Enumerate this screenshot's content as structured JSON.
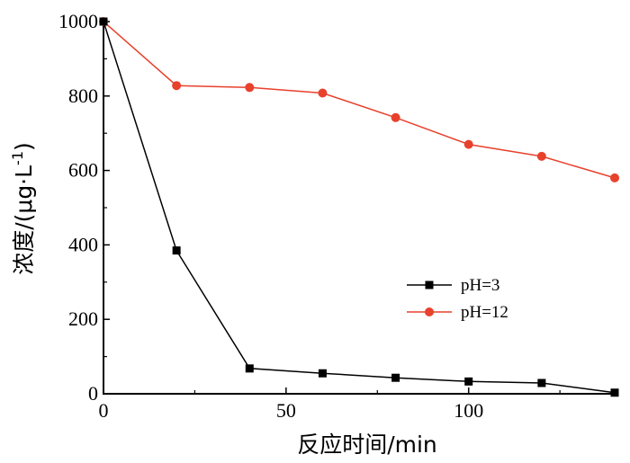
{
  "chart_data": {
    "type": "line",
    "xlabel": "反应时间/min",
    "ylabel_main": "浓度/(μg·L",
    "ylabel_sup": "-1",
    "ylabel_close": ")",
    "xlim": [
      0,
      140
    ],
    "ylim": [
      0,
      1000
    ],
    "x_ticks": [
      "0",
      "50",
      "100"
    ],
    "y_ticks": [
      "0",
      "200",
      "400",
      "600",
      "800",
      "1000"
    ],
    "grid": false,
    "legend_position": "center-right",
    "series": [
      {
        "name": "pH=3",
        "color": "#000000",
        "marker": "square",
        "x": [
          0,
          20,
          40,
          60,
          80,
          100,
          120,
          140
        ],
        "y": [
          1000,
          385,
          68,
          55,
          43,
          33,
          29,
          3
        ]
      },
      {
        "name": "pH=12",
        "color": "#e8412c",
        "marker": "circle",
        "x": [
          0,
          20,
          40,
          60,
          80,
          100,
          120,
          140
        ],
        "y": [
          1000,
          828,
          823,
          808,
          742,
          670,
          638,
          580
        ]
      }
    ]
  }
}
